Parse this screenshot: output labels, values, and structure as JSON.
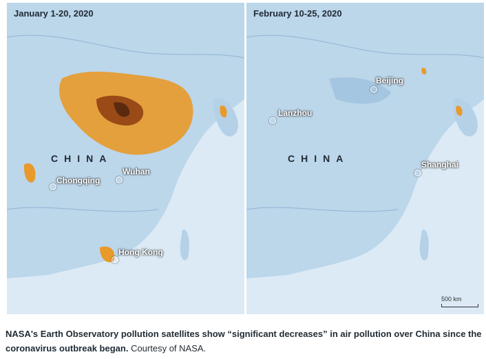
{
  "left_panel": {
    "date": "January 1-20, 2020",
    "country": "CHINA",
    "cities": [
      "Chongqing",
      "Wuhan",
      "Hong Kong"
    ]
  },
  "right_panel": {
    "date": "February 10-25, 2020",
    "country": "CHINA",
    "cities": [
      "Lanzhou",
      "Beijing",
      "Shanghai"
    ],
    "scale": "500 km"
  },
  "caption": {
    "main": "NASA's Earth Observatory pollution satellites show “significant decreases” in air pollution over China since the coronavirus outbreak began.",
    "credit": "Courtesy of NASA."
  },
  "colors": {
    "sea": "#dbeaf5",
    "land": "#bcd6ea",
    "pollution_high": "#e89a2a",
    "pollution_peak": "#5a2a10"
  }
}
